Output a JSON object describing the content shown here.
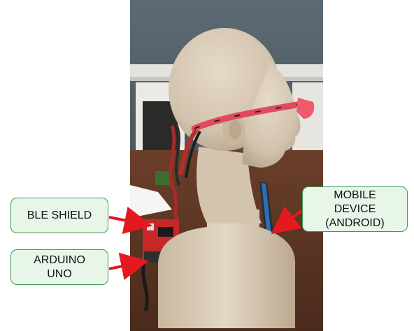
{
  "callouts": {
    "ble_shield": "BLE SHIELD",
    "arduino_uno": "ARDUINO\nUNO",
    "mobile_device": "MOBILE\nDEVICE\n(ANDROID)"
  },
  "colors": {
    "callout_fill": "#e8f5e9",
    "callout_border": "#3f9a4d",
    "arrow": "#e3191f"
  }
}
